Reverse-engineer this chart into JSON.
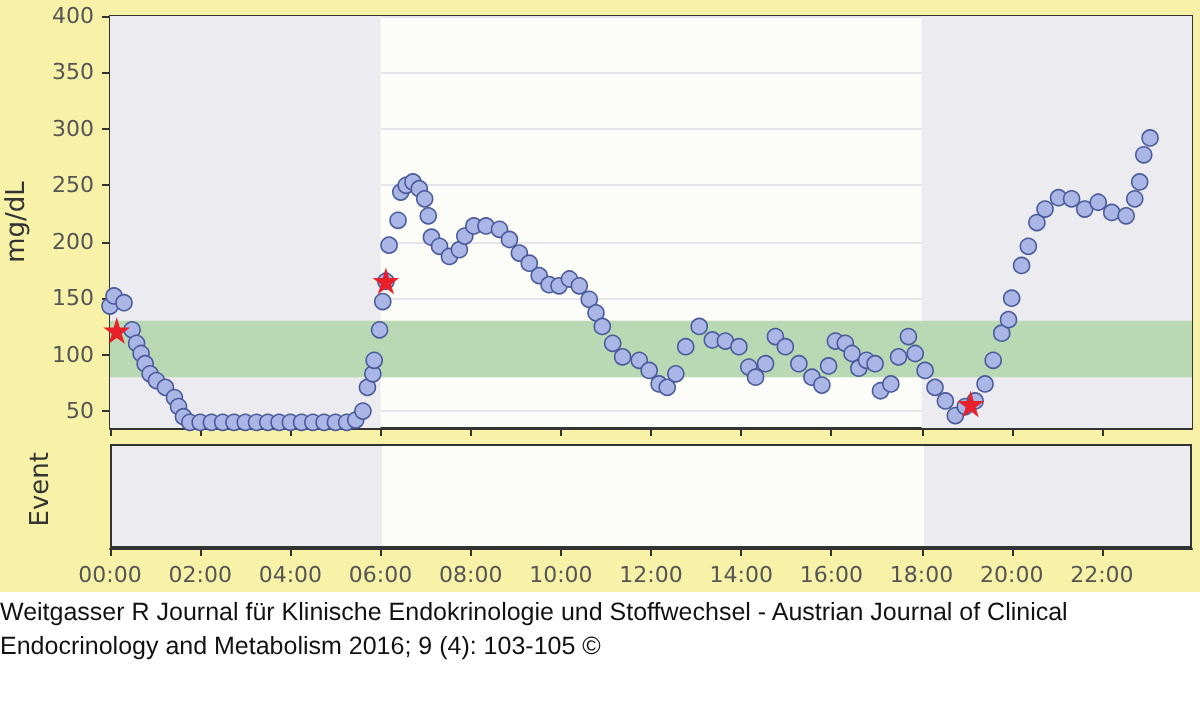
{
  "chart_data": {
    "type": "scatter",
    "ylabel": "mg/dL",
    "xlim": [
      0,
      24
    ],
    "ylim": [
      35,
      400
    ],
    "xticks": [
      {
        "value": 0,
        "label": "00:00"
      },
      {
        "value": 2,
        "label": "02:00"
      },
      {
        "value": 4,
        "label": "04:00"
      },
      {
        "value": 6,
        "label": "06:00"
      },
      {
        "value": 8,
        "label": "08:00"
      },
      {
        "value": 10,
        "label": "10:00"
      },
      {
        "value": 12,
        "label": "12:00"
      },
      {
        "value": 14,
        "label": "14:00"
      },
      {
        "value": 16,
        "label": "16:00"
      },
      {
        "value": 18,
        "label": "18:00"
      },
      {
        "value": 20,
        "label": "20:00"
      },
      {
        "value": 22,
        "label": "22:00"
      }
    ],
    "yticks": [
      50,
      100,
      150,
      200,
      250,
      300,
      350,
      400
    ],
    "grid": "y",
    "bands": [
      {
        "axis": "x",
        "from": 0,
        "to": 6,
        "color": "#ececf0"
      },
      {
        "axis": "x",
        "from": 18,
        "to": 24,
        "color": "#ececf0"
      },
      {
        "axis": "y",
        "from": 80,
        "to": 130,
        "color": "#b9d8b4"
      }
    ],
    "series": [
      {
        "color": "#a9b6e6",
        "marker": "circle",
        "x": [
          0,
          0.09,
          0.31,
          0.49,
          0.59,
          0.69,
          0.78,
          0.89,
          1.03,
          1.23,
          1.43,
          1.52,
          1.63,
          1.77,
          2.0,
          2.25,
          2.5,
          2.75,
          3.0,
          3.25,
          3.5,
          3.75,
          4.0,
          4.25,
          4.5,
          4.75,
          5.0,
          5.25,
          5.45,
          5.61,
          5.71,
          5.83,
          5.86,
          5.98,
          6.05,
          6.12,
          6.19,
          6.39,
          6.45,
          6.57,
          6.72,
          6.86,
          6.98,
          7.06,
          7.13,
          7.31,
          7.53,
          7.75,
          7.87,
          8.07,
          8.34,
          8.64,
          8.86,
          9.08,
          9.3,
          9.52,
          9.74,
          9.96,
          10.19,
          10.41,
          10.63,
          10.78,
          10.92,
          11.15,
          11.37,
          11.74,
          11.96,
          12.18,
          12.36,
          12.55,
          12.77,
          13.07,
          13.36,
          13.65,
          13.95,
          14.17,
          14.32,
          14.54,
          14.76,
          14.98,
          15.28,
          15.57,
          15.79,
          15.94,
          16.09,
          16.31,
          16.46,
          16.61,
          16.78,
          16.97,
          17.09,
          17.32,
          17.49,
          17.71,
          17.86,
          18.08,
          18.3,
          18.53,
          18.75,
          18.97,
          19.19,
          19.41,
          19.59,
          19.78,
          19.93,
          20.0,
          20.22,
          20.37,
          20.56,
          20.74,
          21.04,
          21.33,
          21.62,
          21.92,
          22.22,
          22.54,
          22.73,
          22.84,
          22.93,
          23.07
        ],
        "values": [
          143,
          152,
          146,
          122,
          110,
          101,
          92,
          83,
          77,
          71,
          62,
          54,
          45,
          40,
          40,
          40,
          40,
          40,
          40,
          40,
          40,
          40,
          40,
          40,
          40,
          40,
          40,
          40,
          42,
          50,
          71,
          83,
          95,
          122,
          147,
          165,
          197,
          219,
          244,
          250,
          253,
          247,
          238,
          223,
          204,
          196,
          187,
          193,
          205,
          214,
          214,
          211,
          202,
          190,
          181,
          170,
          162,
          161,
          167,
          161,
          149,
          137,
          125,
          110,
          98,
          95,
          86,
          74,
          71,
          83,
          107,
          125,
          113,
          112,
          107,
          89,
          80,
          92,
          116,
          107,
          92,
          80,
          73,
          90,
          112,
          110,
          101,
          88,
          95,
          92,
          68,
          74,
          98,
          116,
          101,
          86,
          71,
          59,
          46,
          54,
          59,
          74,
          95,
          119,
          131,
          150,
          179,
          196,
          217,
          229,
          239,
          238,
          229,
          235,
          226,
          223,
          238,
          253,
          277,
          292
        ]
      },
      {
        "color": "#e8202a",
        "marker": "star",
        "x": [
          0.15,
          6.12,
          19.09
        ],
        "values": [
          121,
          165,
          56
        ]
      }
    ],
    "annotations": [
      "Event",
      "Weitgasser R Journal für Klinische Endokrinologie und Stoffwechsel - Austrian Journal of Clinical Endocrinology and Metabolism 2016; 9 (4): 103-105 ©"
    ]
  }
}
